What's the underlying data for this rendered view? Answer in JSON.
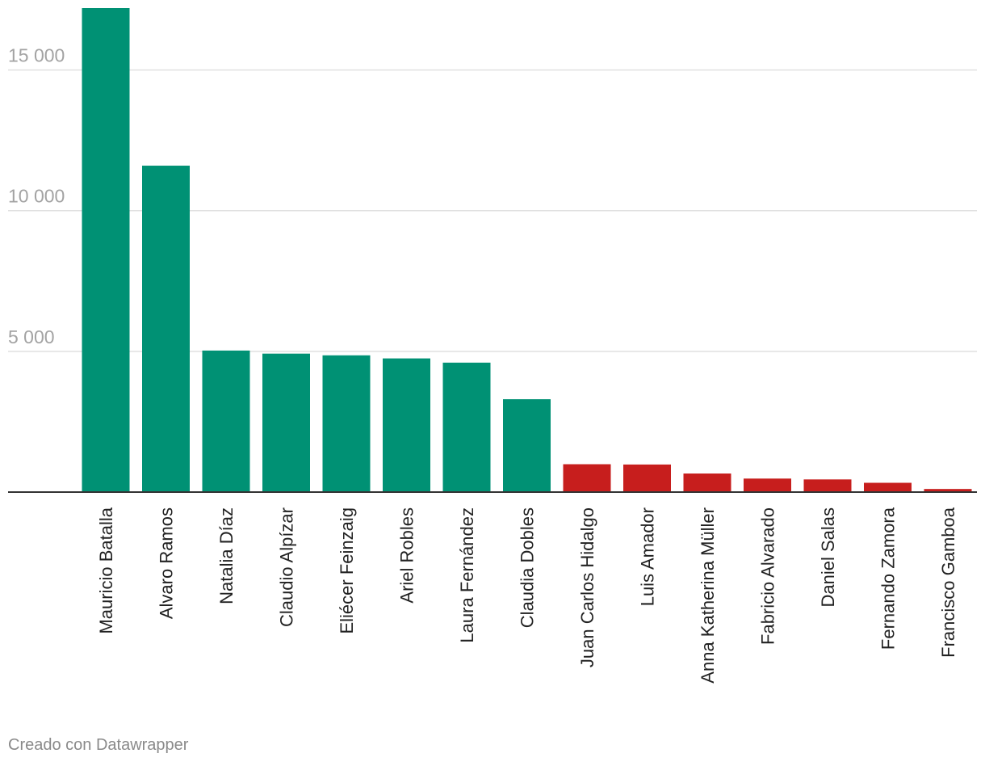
{
  "chart_data": {
    "type": "bar",
    "categories": [
      "Mauricio Batalla",
      "Alvaro Ramos",
      "Natalia Díaz",
      "Claudio Alpízar",
      "Eliécer Feinzaig",
      "Ariel Robles",
      "Laura Fernández",
      "Claudia Dobles",
      "Juan Carlos Hidalgo",
      "Luis Amador",
      "Anna Katherina Müller",
      "Fabricio Alvarado",
      "Daniel Salas",
      "Fernando Zamora",
      "Francisco Gamboa"
    ],
    "values": [
      17200,
      11600,
      5030,
      4920,
      4860,
      4750,
      4600,
      3300,
      990,
      980,
      660,
      480,
      450,
      330,
      110
    ],
    "colors": [
      "#009174",
      "#009174",
      "#009174",
      "#009174",
      "#009174",
      "#009174",
      "#009174",
      "#009174",
      "#c71e1d",
      "#c71e1d",
      "#c71e1d",
      "#c71e1d",
      "#c71e1d",
      "#c71e1d",
      "#c71e1d"
    ],
    "yticks": [
      5000,
      10000,
      15000
    ],
    "ytick_labels": [
      "5 000",
      "10 000",
      "15 000"
    ],
    "ylim": [
      0,
      17200
    ],
    "grid": true,
    "title": "",
    "xlabel": "",
    "ylabel": ""
  },
  "footer": {
    "credit": "Creado con Datawrapper"
  }
}
